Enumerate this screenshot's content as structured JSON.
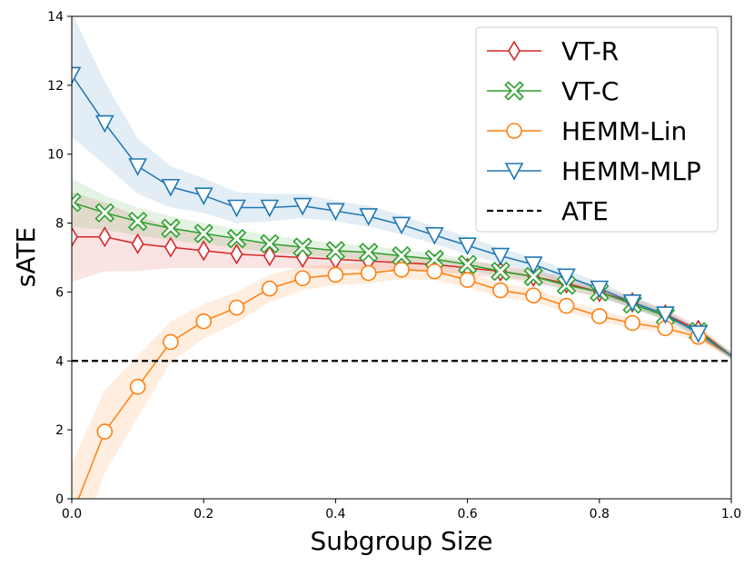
{
  "chart_data": {
    "type": "line",
    "title": "",
    "xlabel": "Subgroup Size",
    "ylabel": "sATE",
    "xlim": [
      0.0,
      1.0
    ],
    "ylim": [
      0,
      14
    ],
    "x_ticks": [
      "0.0",
      "0.2",
      "0.4",
      "0.6",
      "0.8",
      "1.0"
    ],
    "y_ticks": [
      "0",
      "2",
      "4",
      "6",
      "8",
      "10",
      "12",
      "14"
    ],
    "grid": false,
    "legend_position": "upper right",
    "series": [
      {
        "name": "VT-R",
        "color": "#d62728",
        "marker": "thin-diamond",
        "x": [
          0.0,
          0.05,
          0.1,
          0.15,
          0.2,
          0.25,
          0.3,
          0.35,
          0.4,
          0.45,
          0.5,
          0.55,
          0.6,
          0.65,
          0.7,
          0.75,
          0.8,
          0.85,
          0.9,
          0.95,
          1.0
        ],
        "y": [
          7.6,
          7.6,
          7.4,
          7.3,
          7.2,
          7.1,
          7.05,
          7.0,
          6.95,
          6.9,
          6.85,
          6.8,
          6.7,
          6.6,
          6.45,
          6.25,
          6.0,
          5.7,
          5.35,
          4.9,
          4.15
        ],
        "band": [
          1.3,
          1.0,
          0.8,
          0.6,
          0.5,
          0.4,
          0.35,
          0.3,
          0.28,
          0.25,
          0.22,
          0.2,
          0.2,
          0.2,
          0.18,
          0.18,
          0.17,
          0.16,
          0.15,
          0.14,
          0.1
        ]
      },
      {
        "name": "VT-C",
        "color": "#2ca02c",
        "marker": "x-filled",
        "x": [
          0.0,
          0.05,
          0.1,
          0.15,
          0.2,
          0.25,
          0.3,
          0.35,
          0.4,
          0.45,
          0.5,
          0.55,
          0.6,
          0.65,
          0.7,
          0.75,
          0.8,
          0.85,
          0.9,
          0.95,
          1.0
        ],
        "y": [
          8.6,
          8.3,
          8.05,
          7.85,
          7.7,
          7.55,
          7.4,
          7.3,
          7.2,
          7.15,
          7.05,
          6.95,
          6.8,
          6.6,
          6.45,
          6.2,
          6.0,
          5.65,
          5.3,
          4.85,
          4.15
        ],
        "band": [
          0.7,
          0.5,
          0.4,
          0.35,
          0.3,
          0.28,
          0.25,
          0.22,
          0.2,
          0.2,
          0.18,
          0.17,
          0.16,
          0.15,
          0.15,
          0.14,
          0.14,
          0.13,
          0.12,
          0.12,
          0.1
        ]
      },
      {
        "name": "HEMM-Lin",
        "color": "#ff7f0e",
        "marker": "circle",
        "x": [
          0.0,
          0.05,
          0.1,
          0.15,
          0.2,
          0.25,
          0.3,
          0.35,
          0.4,
          0.45,
          0.5,
          0.55,
          0.6,
          0.65,
          0.7,
          0.75,
          0.8,
          0.85,
          0.9,
          0.95,
          1.0
        ],
        "y": [
          -0.5,
          1.95,
          3.25,
          4.55,
          5.15,
          5.55,
          6.1,
          6.4,
          6.5,
          6.55,
          6.65,
          6.6,
          6.35,
          6.05,
          5.9,
          5.6,
          5.3,
          5.1,
          4.95,
          4.7,
          4.15
        ],
        "band": [
          1.5,
          1.2,
          0.9,
          0.6,
          0.5,
          0.45,
          0.4,
          0.35,
          0.3,
          0.3,
          0.28,
          0.25,
          0.22,
          0.2,
          0.2,
          0.18,
          0.16,
          0.15,
          0.14,
          0.12,
          0.1
        ]
      },
      {
        "name": "HEMM-MLP",
        "color": "#1f77b4",
        "marker": "triangle-down",
        "x": [
          0.0,
          0.05,
          0.1,
          0.15,
          0.2,
          0.25,
          0.3,
          0.35,
          0.4,
          0.45,
          0.5,
          0.55,
          0.6,
          0.65,
          0.7,
          0.75,
          0.8,
          0.85,
          0.9,
          0.95,
          1.0
        ],
        "y": [
          12.3,
          10.9,
          9.65,
          9.05,
          8.8,
          8.45,
          8.45,
          8.5,
          8.35,
          8.2,
          7.95,
          7.65,
          7.35,
          7.05,
          6.8,
          6.45,
          6.1,
          5.7,
          5.35,
          4.8,
          4.15
        ],
        "band": [
          1.8,
          1.2,
          0.8,
          0.6,
          0.5,
          0.45,
          0.4,
          0.35,
          0.3,
          0.3,
          0.28,
          0.25,
          0.25,
          0.22,
          0.2,
          0.2,
          0.18,
          0.16,
          0.15,
          0.13,
          0.1
        ]
      }
    ],
    "reference_line": {
      "name": "ATE",
      "y": 4.0,
      "color": "#000000",
      "style": "dashed"
    }
  }
}
